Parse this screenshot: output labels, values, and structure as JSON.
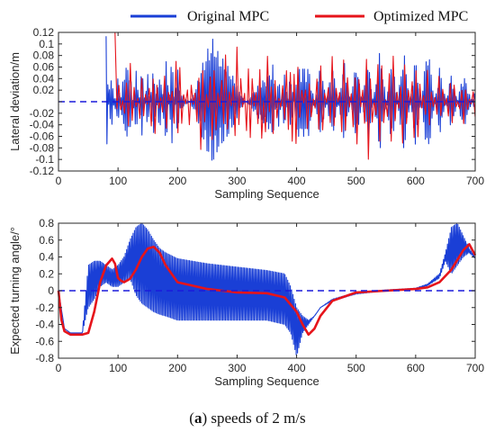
{
  "caption": {
    "letter": "a",
    "text": ") speeds of 2 m/s",
    "open": "("
  },
  "chart_data": [
    {
      "type": "line",
      "title": "",
      "xlabel": "Sampling Sequence",
      "ylabel": "Lateral deviation/m",
      "xlim": [
        0,
        700
      ],
      "ylim": [
        -0.12,
        0.12
      ],
      "xticks": [
        0,
        100,
        200,
        300,
        400,
        500,
        600,
        700
      ],
      "yticks": [
        -0.12,
        -0.1,
        -0.08,
        -0.06,
        -0.04,
        -0.02,
        0,
        0.02,
        0.04,
        0.06,
        0.08,
        0.1,
        0.12
      ],
      "ytick_labels": [
        "-0.12",
        "-0.1",
        "-0.08",
        "-0.06",
        "-0.04",
        "-0.02",
        "",
        "0.02",
        "0.04",
        "0.06",
        "0.08",
        "0.1",
        "0.12"
      ],
      "grid": false,
      "legend": "top",
      "reference_line": {
        "y": 0,
        "style": "dashed",
        "color": "#1a1adb"
      },
      "series": [
        {
          "name": "Original    MPC",
          "color": "#1a3fd6",
          "style": "oscillating",
          "x": [
            80,
            85,
            90,
            95,
            100,
            110,
            120,
            130,
            140,
            150,
            160,
            170,
            180,
            190,
            200,
            205,
            210,
            215,
            220,
            230,
            240,
            250,
            260,
            270,
            280,
            290,
            300,
            310,
            320,
            330,
            340,
            350,
            360,
            370,
            380,
            390,
            400,
            420,
            440,
            460,
            480,
            500,
            520,
            540,
            560,
            580,
            600,
            620,
            640,
            660,
            680,
            700
          ],
          "y": [
            0.115,
            -0.03,
            -0.04,
            0.02,
            -0.05,
            0.06,
            0.06,
            -0.06,
            0.06,
            -0.05,
            0.07,
            -0.07,
            0.09,
            -0.08,
            0.06,
            0.012,
            0.009,
            0.004,
            0.0,
            -0.02,
            -0.06,
            -0.09,
            -0.11,
            -0.08,
            -0.07,
            -0.05,
            -0.03,
            -0.005,
            0.005,
            0.02,
            0.035,
            0.04,
            0.065,
            -0.045,
            0.055,
            -0.06,
            0.06,
            0.06,
            -0.065,
            0.065,
            -0.07,
            0.07,
            -0.07,
            0.09,
            -0.08,
            0.09,
            -0.08,
            0.1,
            -0.06,
            0.05,
            -0.05,
            0.02
          ]
        },
        {
          "name": "Optimized  MPC",
          "color": "#e6141b",
          "style": "oscillating",
          "x": [
            95,
            100,
            120,
            140,
            160,
            180,
            200,
            220,
            240,
            260,
            280,
            300,
            320,
            340,
            350,
            360,
            380,
            400,
            420,
            440,
            460,
            480,
            500,
            520,
            540,
            560,
            580,
            600,
            620,
            640,
            660,
            680,
            700
          ],
          "y": [
            0.12,
            -0.04,
            0.07,
            -0.05,
            0.07,
            -0.06,
            0.09,
            -0.05,
            0.09,
            -0.09,
            0.09,
            -0.1,
            0.09,
            -0.09,
            0.1,
            -0.07,
            0.05,
            0.08,
            -0.06,
            0.08,
            -0.08,
            0.09,
            -0.09,
            0.11,
            -0.1,
            0.1,
            -0.09,
            0.09,
            -0.06,
            0.05,
            -0.05,
            0.04,
            -0.03
          ]
        }
      ]
    },
    {
      "type": "line",
      "title": "",
      "xlabel": "Sampling Sequence",
      "ylabel": "Expected turning angle/°",
      "xlim": [
        0,
        700
      ],
      "ylim": [
        -0.8,
        0.8
      ],
      "xticks": [
        0,
        100,
        200,
        300,
        400,
        500,
        600,
        700
      ],
      "yticks": [
        -0.8,
        -0.6,
        -0.4,
        -0.2,
        0,
        0.2,
        0.4,
        0.6,
        0.8
      ],
      "ytick_labels": [
        "-0.8",
        "-0.6",
        "-0.4",
        "-0.2",
        "0",
        "0.2",
        "0.4",
        "0.6",
        "0.8"
      ],
      "grid": false,
      "reference_line": {
        "y": 0,
        "style": "dashed",
        "color": "#1a1adb"
      },
      "series": [
        {
          "name": "Original    MPC",
          "color": "#1a3fd6",
          "style": "oscillating_envelope",
          "x": [
            0,
            10,
            20,
            30,
            40,
            50,
            60,
            70,
            80,
            90,
            100,
            110,
            120,
            130,
            140,
            150,
            160,
            170,
            180,
            200,
            250,
            300,
            350,
            380,
            390,
            400,
            410,
            420,
            430,
            440,
            460,
            500,
            550,
            600,
            620,
            640,
            650,
            660,
            670,
            680,
            690,
            700
          ],
          "upper": [
            0.0,
            -0.45,
            -0.5,
            -0.5,
            -0.5,
            0.3,
            0.35,
            0.35,
            0.3,
            0.25,
            0.3,
            0.4,
            0.6,
            0.75,
            0.8,
            0.72,
            0.6,
            0.5,
            0.45,
            0.38,
            0.32,
            0.28,
            0.24,
            0.2,
            0.05,
            -0.2,
            -0.3,
            -0.35,
            -0.3,
            -0.2,
            -0.1,
            -0.02,
            0.01,
            0.03,
            0.08,
            0.2,
            0.45,
            0.75,
            0.8,
            0.65,
            0.5,
            0.4
          ],
          "lower": [
            0.0,
            -0.45,
            -0.5,
            -0.5,
            -0.5,
            -0.2,
            -0.1,
            0.05,
            0.1,
            0.05,
            0.05,
            0.1,
            0.15,
            -0.05,
            -0.15,
            -0.2,
            -0.25,
            -0.28,
            -0.3,
            -0.35,
            -0.35,
            -0.35,
            -0.35,
            -0.4,
            -0.5,
            -0.78,
            -0.5,
            -0.4,
            -0.3,
            -0.2,
            -0.12,
            -0.04,
            0.0,
            0.02,
            0.06,
            0.15,
            0.35,
            0.2,
            0.3,
            0.4,
            0.45,
            0.38
          ]
        },
        {
          "name": "Optimized  MPC",
          "color": "#e6141b",
          "style": "smooth",
          "x": [
            0,
            5,
            10,
            20,
            30,
            40,
            50,
            60,
            70,
            80,
            90,
            95,
            100,
            105,
            110,
            120,
            130,
            140,
            150,
            160,
            170,
            180,
            200,
            250,
            300,
            350,
            380,
            400,
            410,
            420,
            430,
            440,
            460,
            500,
            550,
            600,
            620,
            640,
            660,
            680,
            690,
            700
          ],
          "y": [
            0.0,
            -0.35,
            -0.48,
            -0.52,
            -0.52,
            -0.52,
            -0.5,
            -0.25,
            0.1,
            0.3,
            0.38,
            0.32,
            0.15,
            0.12,
            0.1,
            0.14,
            0.25,
            0.4,
            0.5,
            0.52,
            0.45,
            0.3,
            0.1,
            0.02,
            -0.02,
            -0.03,
            -0.08,
            -0.25,
            -0.4,
            -0.52,
            -0.45,
            -0.3,
            -0.12,
            -0.02,
            0.0,
            0.02,
            0.04,
            0.1,
            0.25,
            0.48,
            0.55,
            0.42
          ]
        }
      ]
    }
  ]
}
